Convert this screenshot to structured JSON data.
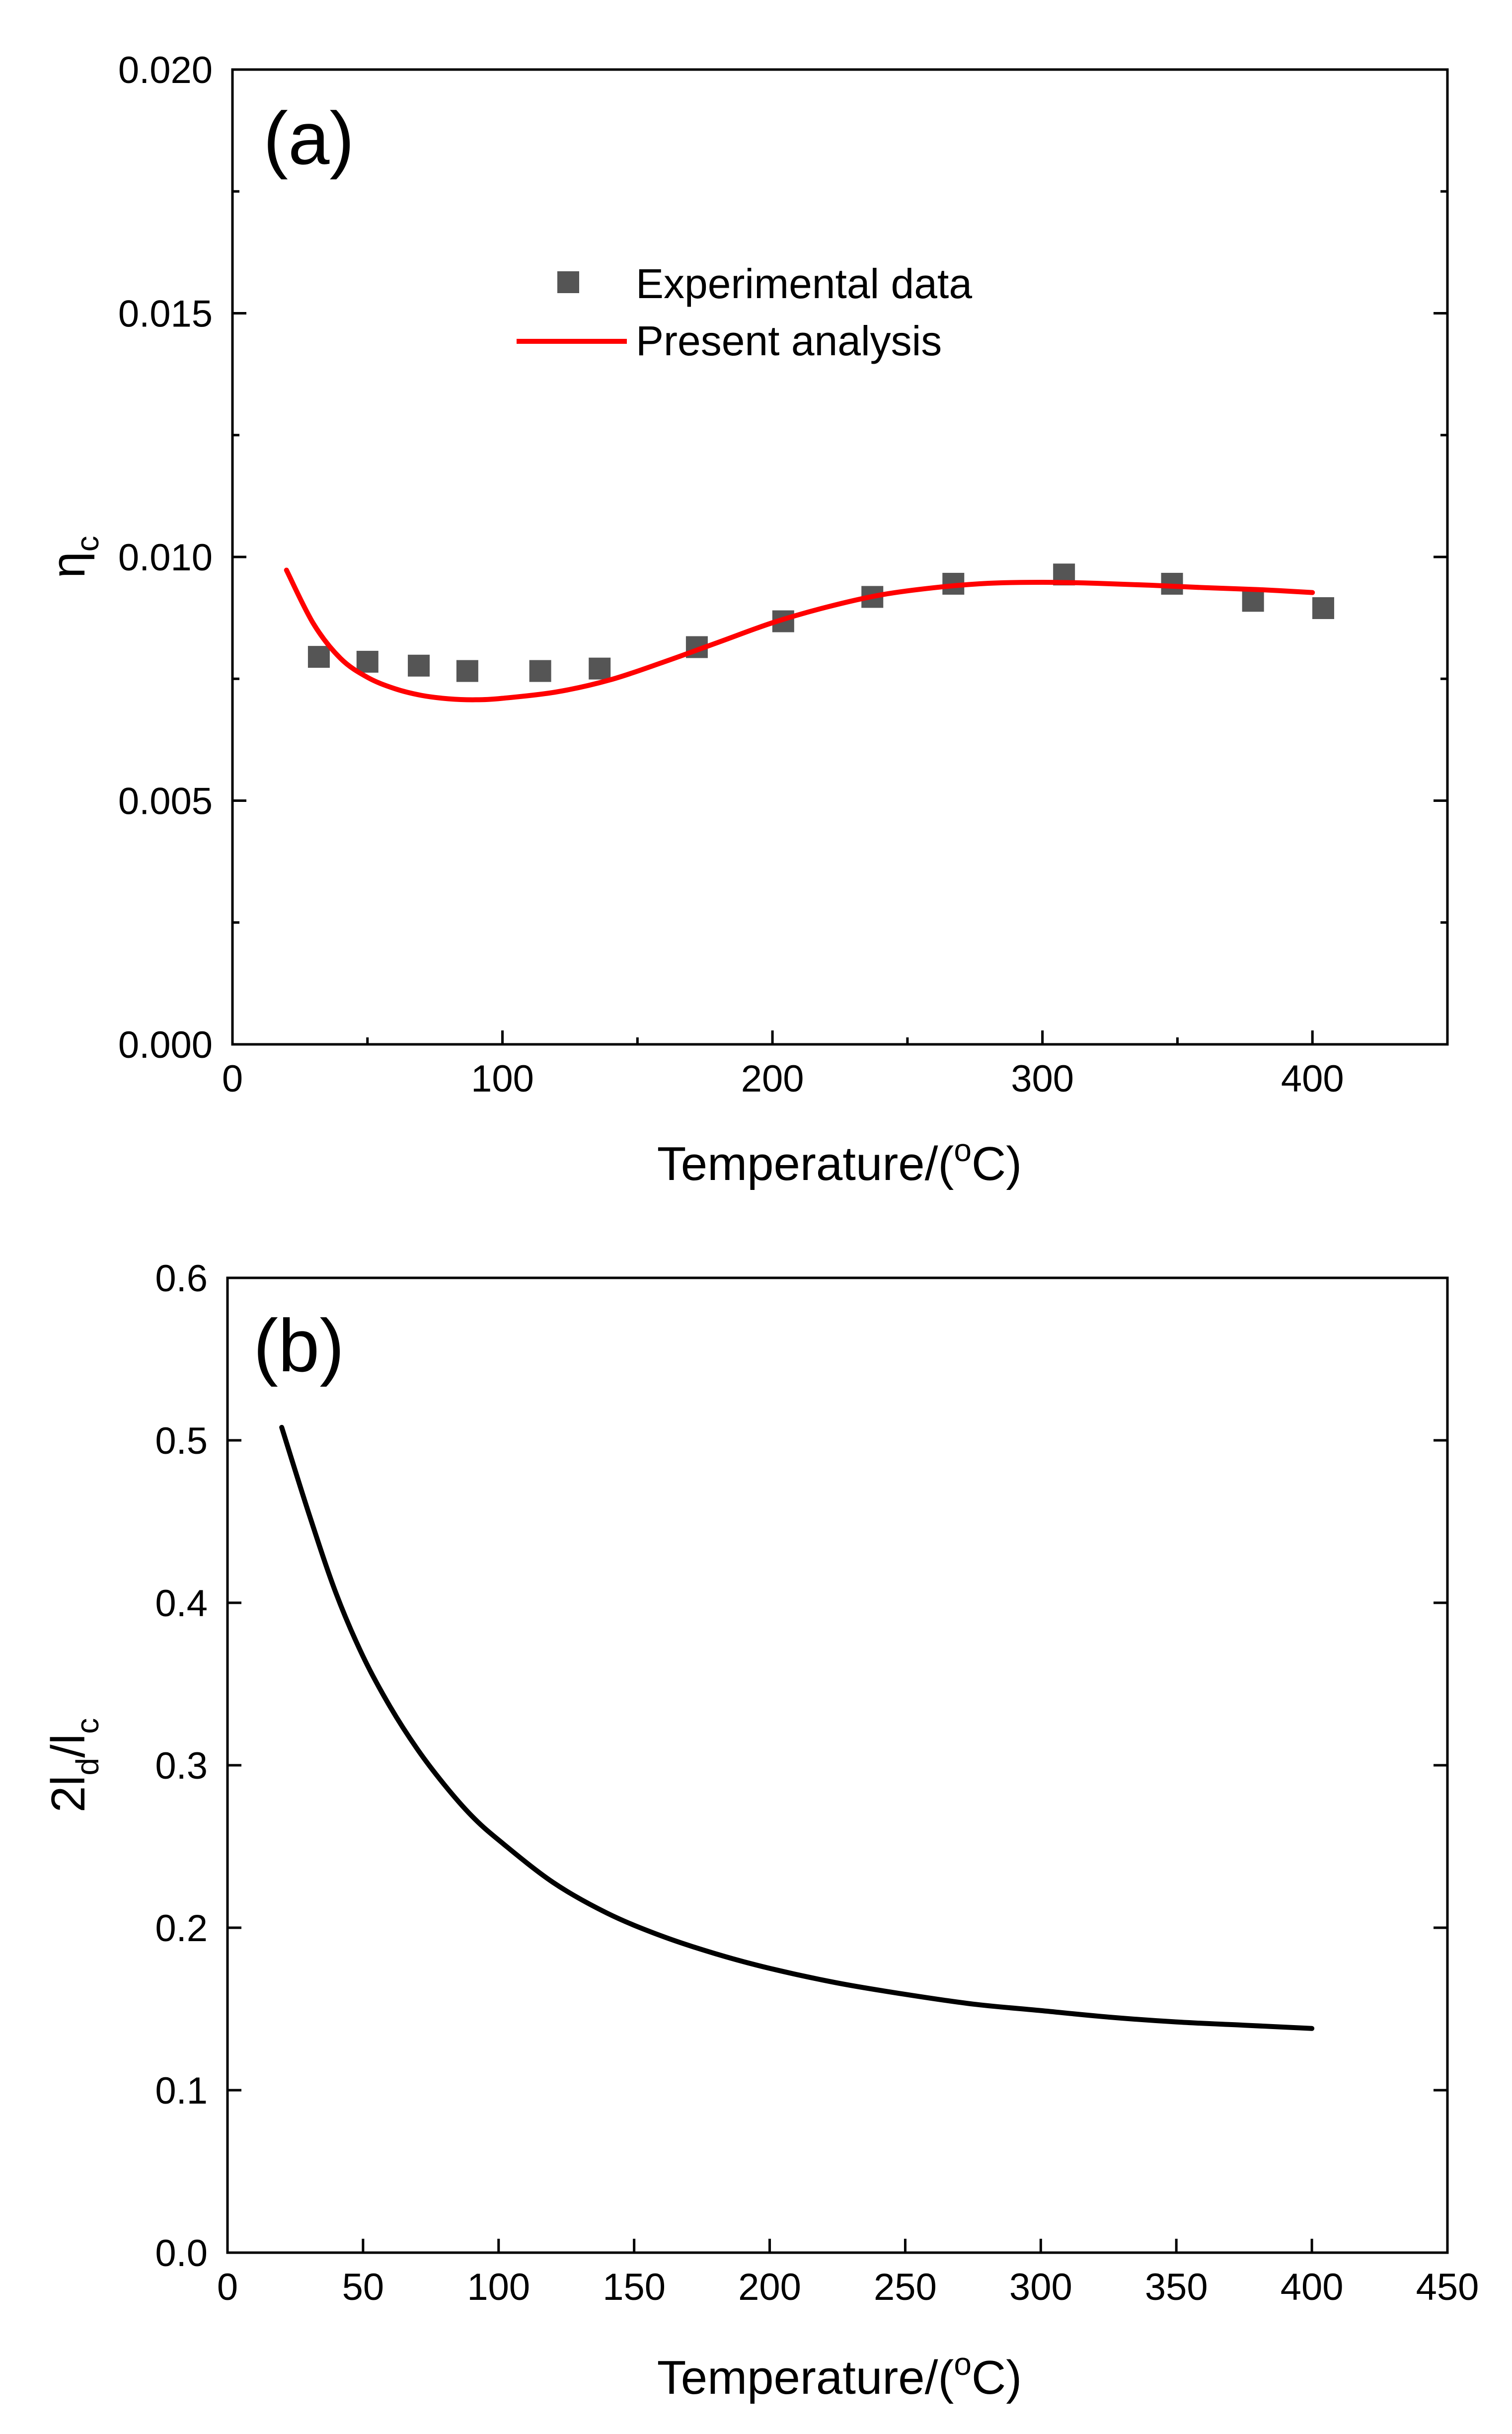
{
  "chart_data": [
    {
      "type": "line",
      "panel_label": "(a)",
      "xlabel": "Temperature/(",
      "xlabel_superscript": "o",
      "xlabel_suffix": "C)",
      "ylabel": "η",
      "ylabel_subscript": "c",
      "xlim": [
        0,
        450
      ],
      "ylim": [
        0,
        0.02
      ],
      "xticks": [
        0,
        100,
        200,
        300,
        400
      ],
      "xtick_labels": [
        "0",
        "100",
        "200",
        "300",
        "400"
      ],
      "yticks": [
        0,
        0.005,
        0.01,
        0.015,
        0.02
      ],
      "ytick_labels": [
        "0.000",
        "0.005",
        "0.010",
        "0.015",
        "0.020"
      ],
      "grid": false,
      "legend_position": "top-center",
      "series": [
        {
          "name": "Experimental data",
          "kind": "scatter",
          "marker": "square",
          "color": "#555555",
          "x": [
            32,
            50,
            69,
            87,
            114,
            136,
            172,
            204,
            237,
            267,
            308,
            348,
            378,
            404
          ],
          "y": [
            0.00795,
            0.00785,
            0.00777,
            0.00766,
            0.00766,
            0.00771,
            0.00815,
            0.00868,
            0.00918,
            0.00945,
            0.00964,
            0.00945,
            0.0091,
            0.00895
          ]
        },
        {
          "name": "Present analysis",
          "kind": "line",
          "color": "#ff0000",
          "x": [
            20,
            30,
            40,
            50,
            60,
            70,
            80,
            90,
            100,
            120,
            140,
            160,
            180,
            200,
            220,
            240,
            260,
            280,
            300,
            320,
            340,
            360,
            380,
            400
          ],
          "y": [
            0.00973,
            0.00863,
            0.00792,
            0.00753,
            0.0073,
            0.00716,
            0.00709,
            0.00707,
            0.0071,
            0.00723,
            0.00748,
            0.00785,
            0.00825,
            0.00865,
            0.00897,
            0.00922,
            0.00937,
            0.00946,
            0.00948,
            0.00946,
            0.00942,
            0.00937,
            0.00933,
            0.00927
          ]
        }
      ]
    },
    {
      "type": "line",
      "panel_label": "(b)",
      "xlabel": "Temperature/(",
      "xlabel_superscript": "o",
      "xlabel_suffix": "C)",
      "ylabel_parts": [
        "2l",
        "d",
        "/l",
        "c"
      ],
      "xlim": [
        0,
        450
      ],
      "ylim": [
        0,
        0.6
      ],
      "xticks": [
        0,
        50,
        100,
        150,
        200,
        250,
        300,
        350,
        400,
        450
      ],
      "xtick_labels": [
        "0",
        "50",
        "100",
        "150",
        "200",
        "250",
        "300",
        "350",
        "400",
        "450"
      ],
      "yticks": [
        0,
        0.1,
        0.2,
        0.3,
        0.4,
        0.5,
        0.6
      ],
      "ytick_labels": [
        "0.0",
        "0.1",
        "0.2",
        "0.3",
        "0.4",
        "0.5",
        "0.6"
      ],
      "grid": false,
      "series": [
        {
          "name": "2ld/lc",
          "kind": "line",
          "color": "#000000",
          "x": [
            20,
            30,
            40,
            50,
            60,
            70,
            80,
            90,
            100,
            120,
            140,
            160,
            180,
            200,
            225,
            250,
            275,
            300,
            325,
            350,
            375,
            400
          ],
          "y": [
            0.508,
            0.455,
            0.406,
            0.367,
            0.336,
            0.31,
            0.288,
            0.269,
            0.254,
            0.228,
            0.209,
            0.195,
            0.184,
            0.175,
            0.166,
            0.159,
            0.153,
            0.149,
            0.145,
            0.142,
            0.14,
            0.138
          ]
        }
      ]
    }
  ]
}
